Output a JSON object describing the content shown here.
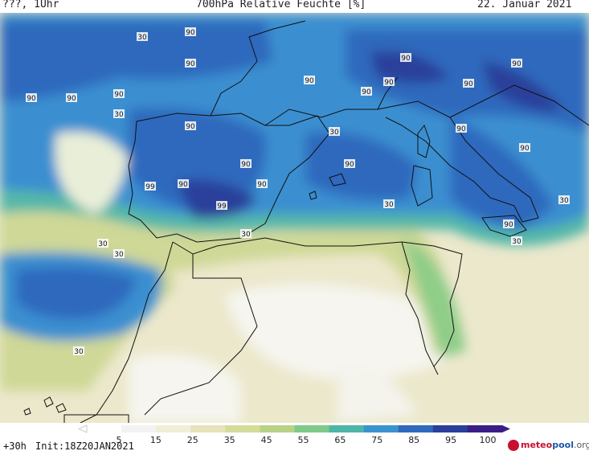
{
  "header": {
    "left": "???, 1Uhr",
    "title": "700hPa Relative Feuchte [%]",
    "date": "22. Januar 2021"
  },
  "contour_labels": [
    "90",
    "90",
    "90",
    "90",
    "90",
    "90",
    "90",
    "90",
    "90",
    "90",
    "90",
    "90",
    "90",
    "90",
    "90",
    "90",
    "90",
    "90",
    "90",
    "99",
    "99",
    "90",
    "30",
    "30",
    "30",
    "30",
    "30",
    "30",
    "30",
    "30",
    "30",
    "30"
  ],
  "legend": {
    "ticks": [
      "5",
      "15",
      "25",
      "35",
      "45",
      "55",
      "65",
      "75",
      "85",
      "95",
      "100"
    ],
    "colors": [
      "#ffffff",
      "#f3f3f3",
      "#f1eed8",
      "#e7e2bb",
      "#d5dc9a",
      "#b8d385",
      "#7fc98a",
      "#4db6a9",
      "#3a93cf",
      "#2f69bd",
      "#2a3f9a",
      "#3a1e86"
    ]
  },
  "footer": {
    "forecast": "+30h",
    "init": "Init:18Z20JAN2021",
    "brand_a": "meteo",
    "brand_b": "pool",
    "brand_c": ".org"
  }
}
